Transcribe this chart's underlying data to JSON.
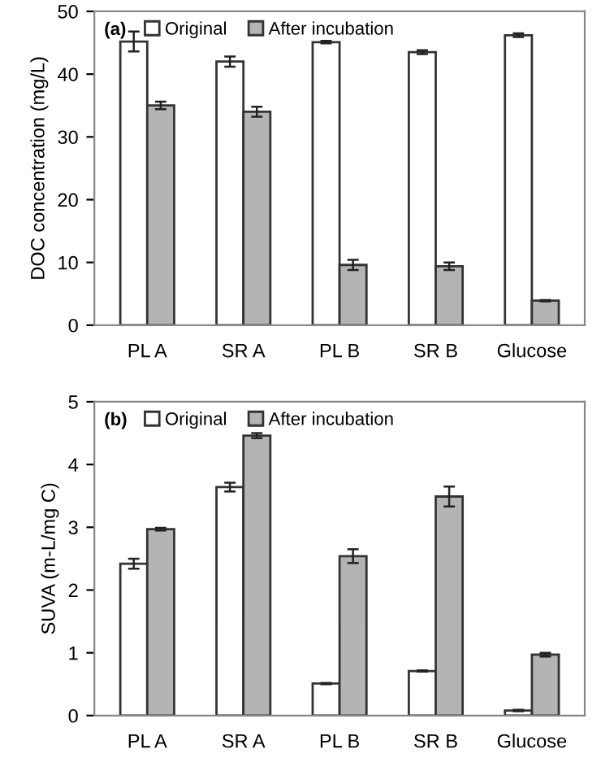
{
  "chart_data": [
    {
      "type": "bar",
      "ylabel": "DOC concentration (mg/L)",
      "annotations": [
        "(a)"
      ],
      "categories": [
        "PL A",
        "SR A",
        "PL B",
        "SR B",
        "Glucose"
      ],
      "ylim": [
        0,
        50
      ],
      "yticks": [
        0,
        10,
        20,
        30,
        40,
        50
      ],
      "grid": false,
      "legend": "top left",
      "series": [
        {
          "name": "Original",
          "color": "#ffffff",
          "values": [
            45.2,
            42.0,
            45.1,
            43.5,
            46.2
          ],
          "errors": [
            1.6,
            0.8,
            0.2,
            0.3,
            0.3
          ]
        },
        {
          "name": "After incubation",
          "color": "#b4b4b4",
          "values": [
            35.0,
            34.0,
            9.6,
            9.4,
            3.9
          ],
          "errors": [
            0.6,
            0.8,
            0.8,
            0.6,
            0.1
          ]
        }
      ]
    },
    {
      "type": "bar",
      "ylabel": "SUVA (m-L/mg C)",
      "annotations": [
        "(b)"
      ],
      "categories": [
        "PL A",
        "SR A",
        "PL B",
        "SR B",
        "Glucose"
      ],
      "ylim": [
        0,
        5
      ],
      "yticks": [
        0,
        1,
        2,
        3,
        4,
        5
      ],
      "grid": false,
      "legend": "top left",
      "series": [
        {
          "name": "Original",
          "color": "#ffffff",
          "values": [
            2.42,
            3.64,
            0.51,
            0.71,
            0.08
          ],
          "errors": [
            0.08,
            0.07,
            0.01,
            0.01,
            0.01
          ]
        },
        {
          "name": "After incubation",
          "color": "#b4b4b4",
          "values": [
            2.97,
            4.46,
            2.54,
            3.49,
            0.97
          ],
          "errors": [
            0.02,
            0.04,
            0.11,
            0.16,
            0.03
          ]
        }
      ]
    }
  ]
}
